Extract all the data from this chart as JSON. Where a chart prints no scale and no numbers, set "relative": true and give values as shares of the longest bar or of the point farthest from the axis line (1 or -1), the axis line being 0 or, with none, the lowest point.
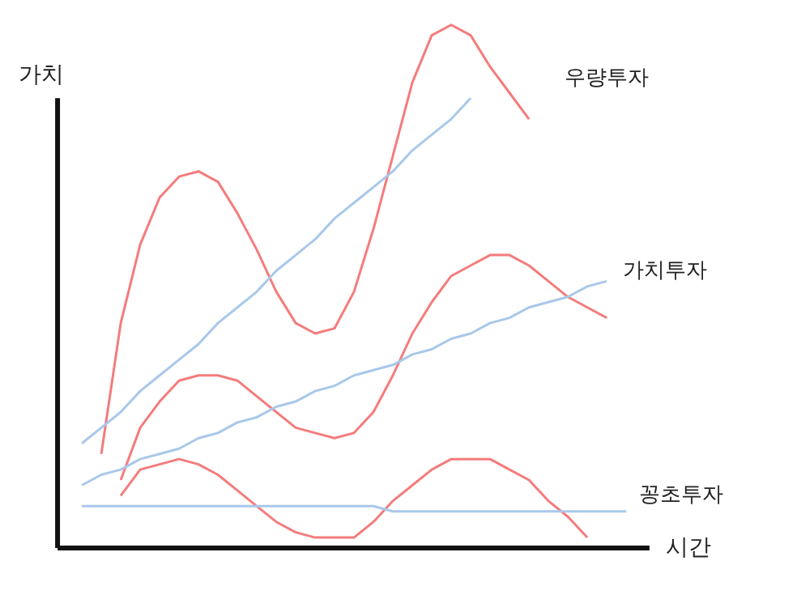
{
  "chart_data": {
    "type": "line",
    "relative": true,
    "xlabel": "시간",
    "ylabel": "가치",
    "grid": false,
    "legend": false,
    "marker": "none",
    "line_style": "solid",
    "categories": [
      null,
      null,
      null,
      null,
      null,
      null,
      null,
      null,
      null,
      null,
      null,
      null,
      null,
      null,
      null,
      null,
      null,
      null,
      null,
      null,
      null,
      null,
      null,
      null,
      null,
      null,
      null,
      null,
      null
    ],
    "series": [
      {
        "color": "#f47c7c",
        "values": [
          null,
          0.18,
          0.43,
          0.58,
          0.67,
          0.71,
          0.72,
          0.7,
          0.64,
          0.57,
          0.49,
          0.43,
          0.41,
          0.42,
          0.49,
          0.61,
          0.75,
          0.89,
          0.98,
          1.0,
          0.98,
          0.92,
          0.87,
          0.82,
          null,
          null,
          null,
          null,
          null
        ]
      },
      {
        "name": "우량투자",
        "color": "#a9c8ea",
        "values": [
          0.2,
          0.23,
          0.26,
          0.3,
          0.33,
          0.36,
          0.39,
          0.43,
          0.46,
          0.49,
          0.53,
          0.56,
          0.59,
          0.63,
          0.66,
          0.69,
          0.72,
          0.76,
          0.79,
          0.82,
          0.86,
          null,
          null,
          null,
          null,
          null,
          null,
          null,
          null
        ]
      },
      {
        "color": "#f47c7c",
        "values": [
          null,
          null,
          0.13,
          0.23,
          0.28,
          0.32,
          0.33,
          0.33,
          0.32,
          0.29,
          0.26,
          0.23,
          0.22,
          0.21,
          0.22,
          0.26,
          0.33,
          0.41,
          0.47,
          0.52,
          0.54,
          0.56,
          0.56,
          0.54,
          0.51,
          0.48,
          0.46,
          0.44,
          null
        ]
      },
      {
        "name": "가치투자",
        "color": "#a9c8ea",
        "values": [
          0.12,
          0.14,
          0.15,
          0.17,
          0.18,
          0.19,
          0.21,
          0.22,
          0.24,
          0.25,
          0.27,
          0.28,
          0.3,
          0.31,
          0.33,
          0.34,
          0.35,
          0.37,
          0.38,
          0.4,
          0.41,
          0.43,
          0.44,
          0.46,
          0.47,
          0.48,
          0.5,
          0.51,
          null
        ]
      },
      {
        "color": "#f47c7c",
        "values": [
          null,
          null,
          0.1,
          0.15,
          0.16,
          0.17,
          0.16,
          0.14,
          0.11,
          0.08,
          0.05,
          0.03,
          0.02,
          0.02,
          0.02,
          0.05,
          0.09,
          0.12,
          0.15,
          0.17,
          0.17,
          0.17,
          0.15,
          0.13,
          0.09,
          0.06,
          0.02,
          null,
          null
        ]
      },
      {
        "name": "꽁초투자",
        "color": "#a9c8ea",
        "values": [
          0.08,
          0.08,
          0.08,
          0.08,
          0.08,
          0.08,
          0.08,
          0.08,
          0.08,
          0.08,
          0.08,
          0.08,
          0.08,
          0.08,
          0.08,
          0.08,
          0.07,
          0.07,
          0.07,
          0.07,
          0.07,
          0.07,
          0.07,
          0.07,
          0.07,
          0.07,
          0.07,
          0.07,
          0.07
        ]
      }
    ]
  }
}
